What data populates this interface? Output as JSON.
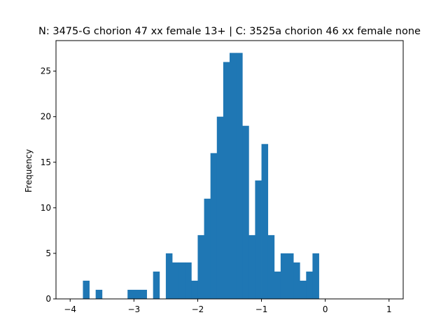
{
  "chart_data": {
    "type": "bar",
    "title": "N: 3475-G chorion 47 xx female 13+ | C: 3525a chorion 46 xx female none",
    "xlabel": "",
    "ylabel": "Frequency",
    "xlim": [
      -4.222,
      1.222
    ],
    "ylim": [
      0,
      28.35
    ],
    "xticks": [
      -4,
      -3,
      -2,
      -1,
      0,
      1
    ],
    "xtick_labels": [
      "−4",
      "−3",
      "−2",
      "−1",
      "0",
      "1"
    ],
    "yticks": [
      0,
      5,
      10,
      15,
      20,
      25
    ],
    "ytick_labels": [
      "0",
      "5",
      "10",
      "15",
      "20",
      "25"
    ],
    "bar_color": "#1f77b4",
    "grid": false,
    "bins": {
      "start": -4.0,
      "width": 0.1,
      "counts": [
        0,
        0,
        2,
        0,
        1,
        0,
        0,
        0,
        0,
        1,
        1,
        1,
        0,
        3,
        0,
        5,
        4,
        4,
        4,
        2,
        7,
        11,
        16,
        20,
        26,
        27,
        27,
        19,
        7,
        13,
        17,
        7,
        3,
        5,
        5,
        4,
        2,
        3,
        5,
        0,
        0,
        0,
        0,
        0,
        0,
        0,
        0,
        0,
        0,
        0
      ]
    }
  }
}
